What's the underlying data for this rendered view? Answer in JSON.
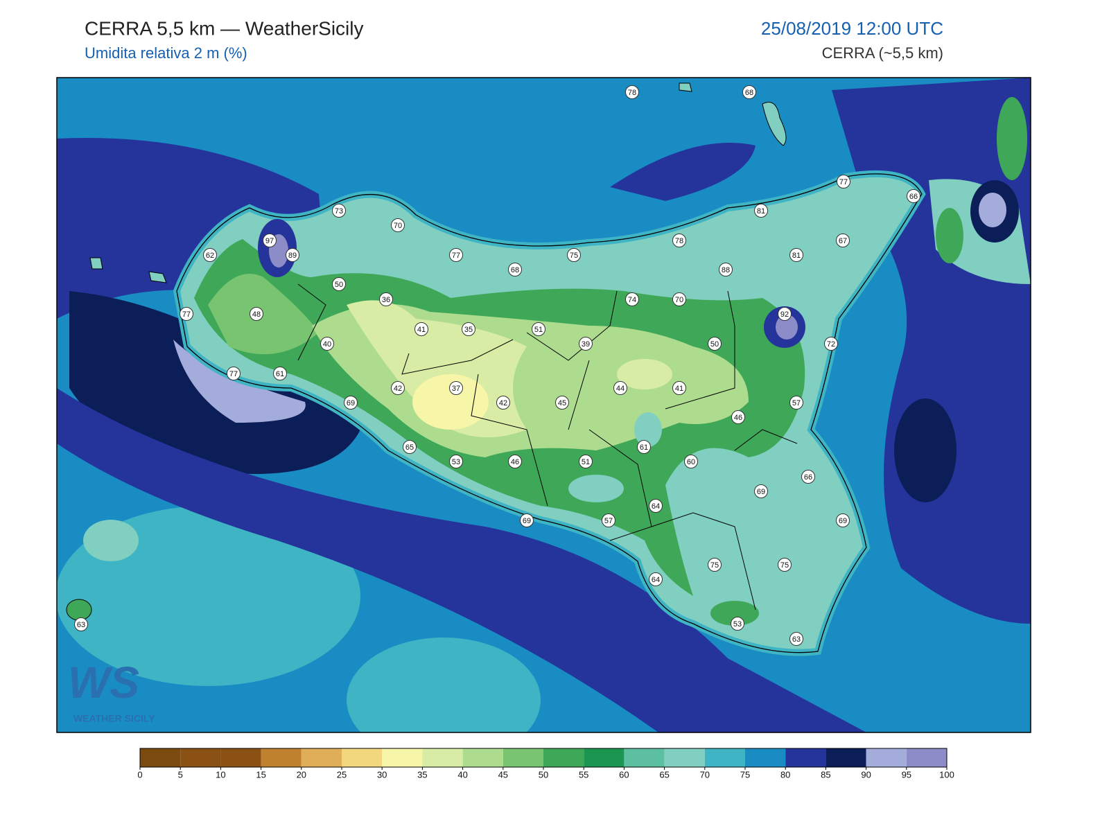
{
  "header": {
    "title": "CERRA 5,5 km — WeatherSicily",
    "subtitle": "Umidita relativa 2 m (%)",
    "date": "25/08/2019 12:00 UTC",
    "source": "CERRA (~5,5 km)"
  },
  "stations": [
    78,
    68,
    77,
    66,
    73,
    70,
    81,
    67,
    97,
    89,
    62,
    77,
    75,
    78,
    81,
    68,
    88,
    50,
    36,
    74,
    70,
    77,
    48,
    92,
    41,
    35,
    51,
    40,
    39,
    50,
    72,
    77,
    61,
    42,
    37,
    44,
    41,
    69,
    42,
    45,
    57,
    46,
    65,
    61,
    53,
    46,
    51,
    60,
    66,
    69,
    64,
    69,
    57,
    69,
    75,
    75,
    64,
    63,
    53,
    63
  ],
  "colorbar": {
    "ticks": [
      0,
      5,
      10,
      15,
      20,
      25,
      30,
      35,
      40,
      45,
      50,
      55,
      60,
      65,
      70,
      75,
      80,
      85,
      90,
      95,
      100
    ],
    "colors": [
      "#7b4a0e",
      "#8b5014",
      "#8b5014",
      "#c0812e",
      "#e0ae58",
      "#f2d77f",
      "#f7f5a8",
      "#d9eca6",
      "#aedc8f",
      "#78c470",
      "#3fa858",
      "#1a9650",
      "#5cbfa0",
      "#80cfc0",
      "#3fb4c4",
      "#1a8cc4",
      "#24349a",
      "#0c1e58",
      "#a4acdc",
      "#8c8cc8"
    ]
  },
  "logo": {
    "mark": "WS",
    "name": "WEATHER SICILY"
  }
}
